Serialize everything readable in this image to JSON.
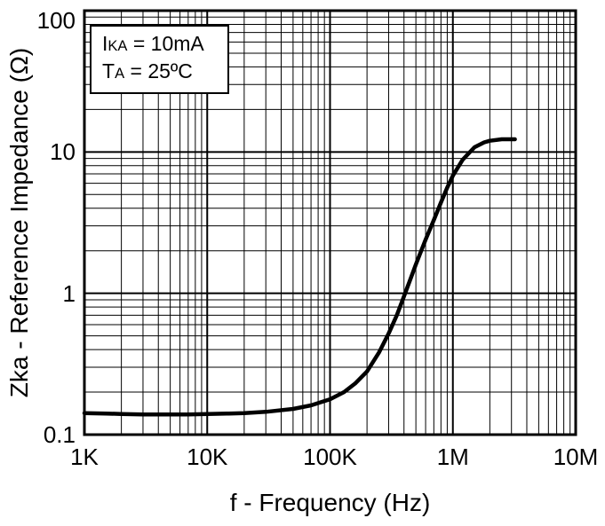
{
  "chart_data": {
    "type": "line",
    "title": "",
    "xlabel": "f - Frequency (Hz)",
    "ylabel": "Zka - Reference Impedance (Ω)",
    "x_scale": "log",
    "y_scale": "log",
    "xlim": [
      1000,
      10000000
    ],
    "ylim": [
      0.1,
      100
    ],
    "grid": "log-major-minor",
    "legend": "none",
    "line_color": "#000000",
    "x_ticks": [
      {
        "value": 1000,
        "label": "1K"
      },
      {
        "value": 10000,
        "label": "10K"
      },
      {
        "value": 100000,
        "label": "100K"
      },
      {
        "value": 1000000,
        "label": "1M"
      },
      {
        "value": 10000000,
        "label": "10M"
      }
    ],
    "y_ticks": [
      {
        "value": 0.1,
        "label": "0.1"
      },
      {
        "value": 1,
        "label": "1"
      },
      {
        "value": 10,
        "label": "10"
      },
      {
        "value": 100,
        "label": "100"
      }
    ],
    "annotation": {
      "lines": [
        {
          "pre": "I",
          "sub": "KA",
          "post": " = 10mA"
        },
        {
          "pre": "T",
          "sub": "A",
          "post": " = 25ºC"
        }
      ]
    },
    "series": [
      {
        "name": "Zka",
        "points": [
          [
            1000,
            0.142
          ],
          [
            1500,
            0.141
          ],
          [
            2000,
            0.14
          ],
          [
            3000,
            0.139
          ],
          [
            5000,
            0.139
          ],
          [
            7000,
            0.139
          ],
          [
            10000,
            0.14
          ],
          [
            15000,
            0.141
          ],
          [
            20000,
            0.142
          ],
          [
            30000,
            0.145
          ],
          [
            50000,
            0.152
          ],
          [
            70000,
            0.161
          ],
          [
            100000,
            0.178
          ],
          [
            130000,
            0.2
          ],
          [
            160000,
            0.23
          ],
          [
            200000,
            0.28
          ],
          [
            250000,
            0.38
          ],
          [
            300000,
            0.52
          ],
          [
            350000,
            0.7
          ],
          [
            400000,
            0.95
          ],
          [
            450000,
            1.25
          ],
          [
            500000,
            1.6
          ],
          [
            600000,
            2.4
          ],
          [
            700000,
            3.3
          ],
          [
            800000,
            4.4
          ],
          [
            900000,
            5.6
          ],
          [
            1000000,
            6.8
          ],
          [
            1200000,
            8.8
          ],
          [
            1500000,
            10.8
          ],
          [
            1800000,
            11.7
          ],
          [
            2000000,
            12.0
          ],
          [
            2500000,
            12.3
          ],
          [
            3000000,
            12.3
          ],
          [
            3200000,
            12.3
          ]
        ]
      }
    ]
  }
}
